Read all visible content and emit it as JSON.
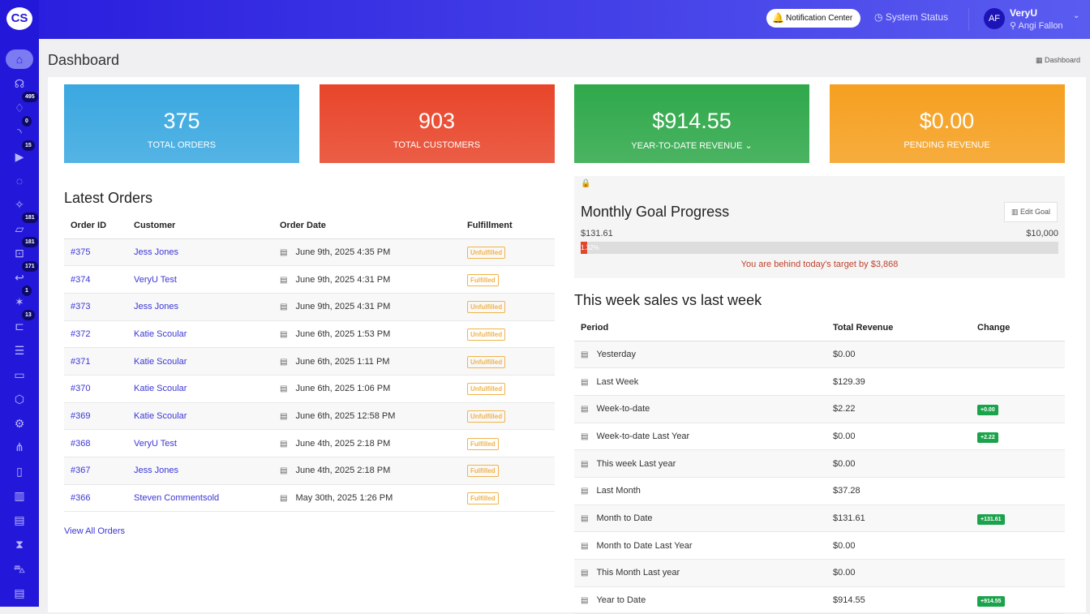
{
  "brand": {
    "logo": "CS"
  },
  "sidebar": {
    "items": [
      {
        "icon": "home-icon",
        "glyph": "⌂",
        "badge": null,
        "active": true
      },
      {
        "icon": "headset-icon",
        "glyph": "☊",
        "badge": null
      },
      {
        "icon": "tag-icon",
        "glyph": "♢",
        "badge": "495"
      },
      {
        "icon": "rss-icon",
        "glyph": "◝",
        "badge": "0"
      },
      {
        "icon": "play-icon",
        "glyph": "▶",
        "badge": "15"
      },
      {
        "icon": "chat-icon",
        "glyph": "◌",
        "badge": null
      },
      {
        "icon": "magic-wand-icon",
        "glyph": "✧",
        "badge": null
      },
      {
        "icon": "box-icon",
        "glyph": "▱",
        "badge": "181"
      },
      {
        "icon": "scan-icon",
        "glyph": "⊡",
        "badge": "181"
      },
      {
        "icon": "return-icon",
        "glyph": "↩",
        "badge": "171"
      },
      {
        "icon": "party-icon",
        "glyph": "✶",
        "badge": "1"
      },
      {
        "icon": "ticket-icon",
        "glyph": "⊏",
        "badge": "13"
      },
      {
        "icon": "user-list-icon",
        "glyph": "☰",
        "badge": null
      },
      {
        "icon": "screen-icon",
        "glyph": "▭",
        "badge": null
      },
      {
        "icon": "cube-icon",
        "glyph": "⬡",
        "badge": null
      },
      {
        "icon": "gear-icon",
        "glyph": "⚙",
        "badge": null
      },
      {
        "icon": "share-icon",
        "glyph": "⋔",
        "badge": null
      },
      {
        "icon": "mobile-icon",
        "glyph": "▯",
        "badge": null
      },
      {
        "icon": "bar-chart-icon",
        "glyph": "▥",
        "badge": null
      },
      {
        "icon": "analytics-icon",
        "glyph": "▤",
        "badge": null
      },
      {
        "icon": "hourglass-icon",
        "glyph": "⧗",
        "badge": null
      },
      {
        "icon": "cart-icon",
        "glyph": "⛍",
        "badge": null
      },
      {
        "icon": "document-icon",
        "glyph": "▤",
        "badge": null
      }
    ]
  },
  "header": {
    "notification": "Notification Center",
    "system_status": "System Status",
    "avatar": "AF",
    "org": "VeryU",
    "user": "Angi Fallon"
  },
  "page": {
    "title": "Dashboard",
    "breadcrumb": "Dashboard"
  },
  "stats": [
    {
      "value": "375",
      "label": "TOTAL ORDERS",
      "color": "#3aa8e0"
    },
    {
      "value": "903",
      "label": "TOTAL CUSTOMERS",
      "color": "#e8452a"
    },
    {
      "value": "$914.55",
      "label": "YEAR-TO-DATE REVENUE ⌄",
      "color": "#2fa84a"
    },
    {
      "value": "$0.00",
      "label": "PENDING REVENUE",
      "color": "#f5a020"
    }
  ],
  "orders": {
    "title": "Latest Orders",
    "headers": [
      "Order ID",
      "Customer",
      "Order Date",
      "Fulfillment"
    ],
    "rows": [
      [
        "#375",
        "Jess Jones",
        "June 9th, 2025 4:35 PM",
        "Unfulfilled"
      ],
      [
        "#374",
        "VeryU Test",
        "June 9th, 2025 4:31 PM",
        "Fulfilled"
      ],
      [
        "#373",
        "Jess Jones",
        "June 9th, 2025 4:31 PM",
        "Unfulfilled"
      ],
      [
        "#372",
        "Katie Scoular",
        "June 6th, 2025 1:53 PM",
        "Unfulfilled"
      ],
      [
        "#371",
        "Katie Scoular",
        "June 6th, 2025 1:11 PM",
        "Unfulfilled"
      ],
      [
        "#370",
        "Katie Scoular",
        "June 6th, 2025 1:06 PM",
        "Unfulfilled"
      ],
      [
        "#369",
        "Katie Scoular",
        "June 6th, 2025 12:58 PM",
        "Unfulfilled"
      ],
      [
        "#368",
        "VeryU Test",
        "June 4th, 2025 2:18 PM",
        "Fulfilled"
      ],
      [
        "#367",
        "Jess Jones",
        "June 4th, 2025 2:18 PM",
        "Fulfilled"
      ],
      [
        "#366",
        "Steven Commentsold",
        "May 30th, 2025 1:26 PM",
        "Fulfilled"
      ]
    ],
    "view_all": "View All Orders"
  },
  "goal": {
    "title": "Monthly Goal Progress",
    "edit": "Edit Goal",
    "current": "$131.61",
    "target": "$10,000",
    "percent": 1.32,
    "percent_label": "1.32%",
    "message": "You are behind today's target by $3,868"
  },
  "weekly": {
    "title": "This week sales vs last week",
    "headers": [
      "Period",
      "Total Revenue",
      "Change"
    ],
    "rows": [
      [
        "Yesterday",
        "$0.00",
        ""
      ],
      [
        "Last Week",
        "$129.39",
        ""
      ],
      [
        "Week-to-date",
        "$2.22",
        "+0.00"
      ],
      [
        "Week-to-date Last Year",
        "$0.00",
        "+2.22"
      ],
      [
        "This week Last year",
        "$0.00",
        ""
      ],
      [
        "Last Month",
        "$37.28",
        ""
      ],
      [
        "Month to Date",
        "$131.61",
        "+131.61"
      ],
      [
        "Month to Date Last Year",
        "$0.00",
        ""
      ],
      [
        "This Month Last year",
        "$0.00",
        ""
      ],
      [
        "Year to Date",
        "$914.55",
        "+914.55"
      ]
    ]
  }
}
